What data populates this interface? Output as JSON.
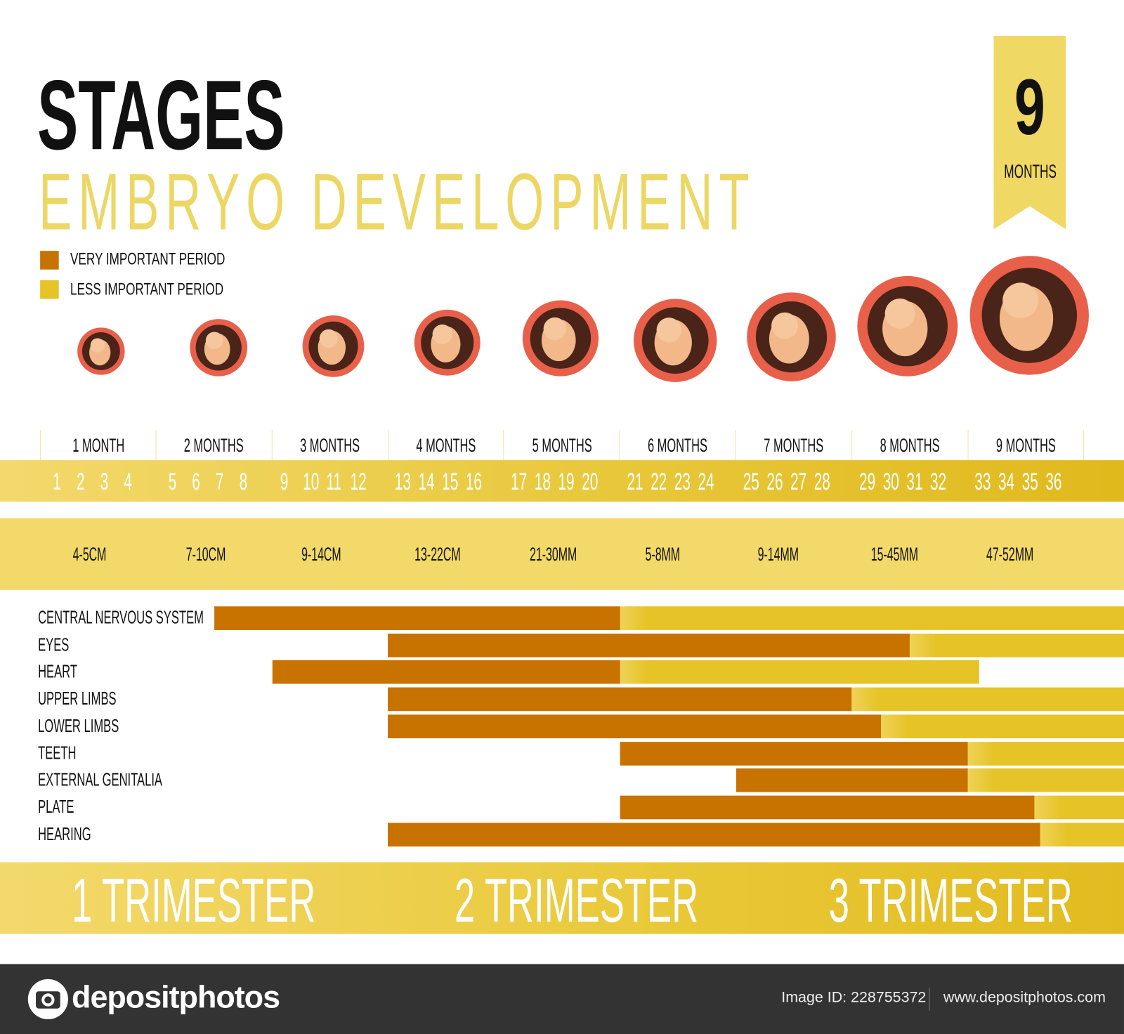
{
  "title": "STAGES",
  "subtitle": "EMBRYO DEVELOPMENT",
  "legend": [
    {
      "label": "VERY IMPORTANT PERIOD",
      "color": "#c87200"
    },
    {
      "label": "LESS IMPORTANT PERIOD",
      "color": "#e6c326"
    }
  ],
  "ribbon": {
    "number": "9",
    "label": "MONTHS"
  },
  "months": [
    "1 MONTH",
    "2 MONTHS",
    "3 MONTHS",
    "4 MONTHS",
    "5 MONTHS",
    "6 MONTHS",
    "7 MONTHS",
    "8 MONTHS",
    "9 MONTHS"
  ],
  "weeks": [
    "1",
    "2",
    "3",
    "4",
    "5",
    "6",
    "7",
    "8",
    "9",
    "10",
    "11",
    "12",
    "13",
    "14",
    "15",
    "16",
    "17",
    "18",
    "19",
    "20",
    "21",
    "22",
    "23",
    "24",
    "25",
    "26",
    "27",
    "28",
    "29",
    "30",
    "31",
    "32",
    "33",
    "34",
    "35",
    "36"
  ],
  "sizes": [
    "4-5CM",
    "7-10CM",
    "9-14CM",
    "13-22CM",
    "21-30MM",
    "5-8MM",
    "9-14MM",
    "15-45MM",
    "47-52MM"
  ],
  "trimesters": [
    "1 TRIMESTER",
    "2 TRIMESTER",
    "3 TRIMESTER"
  ],
  "chart_data": {
    "type": "gantt",
    "x_unit": "week",
    "xlim": [
      0,
      36
    ],
    "rows": [
      {
        "label": "CENTRAL  NERVOUS SYSTEM",
        "very_start": 6,
        "very_end": 20,
        "less_end": 37.5
      },
      {
        "label": "EYES",
        "very_start": 12,
        "very_end": 30,
        "less_end": 37.5
      },
      {
        "label": "HEART",
        "very_start": 8,
        "very_end": 20,
        "less_end": 32.4
      },
      {
        "label": "UPPER LIMBS",
        "very_start": 12,
        "very_end": 28,
        "less_end": 37.5
      },
      {
        "label": "LOWER LIMBS",
        "very_start": 12,
        "very_end": 29,
        "less_end": 37.5
      },
      {
        "label": "TEETH",
        "very_start": 20,
        "very_end": 32,
        "less_end": 37.5
      },
      {
        "label": "EXTERNAL GENITALIA",
        "very_start": 24,
        "very_end": 32,
        "less_end": 37.5
      },
      {
        "label": "PLATE",
        "very_start": 20,
        "very_end": 34.3,
        "less_end": 37.5
      },
      {
        "label": "HEARING",
        "very_start": 12,
        "very_end": 34.5,
        "less_end": 37.5
      }
    ]
  },
  "footer": {
    "brand": "depositphotos",
    "image_id": "Image ID: 228755372",
    "site": "www.depositphotos.com"
  }
}
